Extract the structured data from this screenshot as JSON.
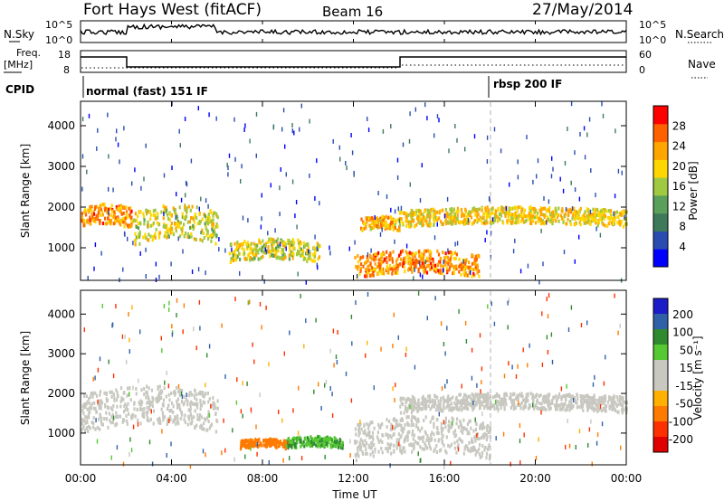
{
  "header": {
    "station": "Fort Hays West (fitACF)",
    "beam": "Beam 16",
    "date": "27/May/2014"
  },
  "small_panels": {
    "nsky_label": "N.Sky",
    "nsearch_label": "N.Search",
    "freq_label_1": "Freq.",
    "freq_label_2": "[MHz]",
    "nave_label": "Nave",
    "cpid_label": "CPID",
    "nsky_ticks": [
      "10^5",
      "10^0"
    ],
    "nsearch_ticks": [
      "10^5",
      "10^0"
    ],
    "freq_ticks": [
      "18",
      "8"
    ],
    "nave_ticks": [
      "60",
      "0"
    ]
  },
  "cpid": {
    "segments": [
      {
        "label": "normal (fast) 151 IF",
        "start_hour": 0,
        "end_hour": 18
      },
      {
        "label": "rbsp 200 IF",
        "start_hour": 18,
        "end_hour": 24
      }
    ]
  },
  "colors": {
    "power_scale": [
      "#0000ff",
      "#2a4cb0",
      "#3e7a5a",
      "#5aa05a",
      "#a0c840",
      "#ffd700",
      "#ffa500",
      "#ff6000",
      "#ff0000"
    ],
    "velocity_scale": [
      "#1c1cc8",
      "#3060a8",
      "#2f8a2f",
      "#55c832",
      "#c8c8c0",
      "#c8c8c0",
      "#ffb000",
      "#ff7a00",
      "#ff3000",
      "#e00000"
    ]
  },
  "chart_data": [
    {
      "type": "heatmap",
      "name": "power",
      "xlabel": "Time UT",
      "ylabel": "Slant Range [km]",
      "ylim": [
        200,
        4600
      ],
      "xlim": [
        0,
        24
      ],
      "yticks": [
        1000,
        2000,
        3000,
        4000
      ],
      "colorbar": {
        "label": "Power [dB]",
        "ticks": [
          4,
          8,
          12,
          16,
          20,
          24,
          28
        ],
        "range": [
          0,
          32
        ]
      },
      "features": [
        {
          "t0": 0,
          "t1": 2.3,
          "r0": 1450,
          "r1": 1950,
          "value": 24
        },
        {
          "t0": 2.3,
          "t1": 6,
          "r0": 1050,
          "r1": 1850,
          "value": 18
        },
        {
          "t0": 6.5,
          "t1": 10.5,
          "r0": 600,
          "r1": 1100,
          "value": 18
        },
        {
          "t0": 12.3,
          "t1": 14,
          "r0": 1400,
          "r1": 1700,
          "value": 22
        },
        {
          "t0": 14,
          "t1": 24,
          "r0": 1500,
          "r1": 1900,
          "value": 20
        },
        {
          "t0": 12,
          "t1": 17.5,
          "r0": 250,
          "r1": 800,
          "value": 24
        }
      ]
    },
    {
      "type": "heatmap",
      "name": "velocity",
      "xlabel": "Time UT",
      "ylabel": "Slant Range [km]",
      "ylim": [
        200,
        4600
      ],
      "xlim": [
        0,
        24
      ],
      "yticks": [
        1000,
        2000,
        3000,
        4000
      ],
      "colorbar": {
        "label": "Velocity [m s⁻¹]",
        "ticks": [
          200,
          100,
          50,
          15,
          -15,
          -50,
          -100,
          -200
        ]
      },
      "x_ticks": [
        "00:00",
        "04:00",
        "08:00",
        "12:00",
        "16:00",
        "20:00",
        "00:00"
      ],
      "features": [
        {
          "t0": 0,
          "t1": 6,
          "r0": 1000,
          "r1": 1950,
          "value": 0
        },
        {
          "t0": 7,
          "t1": 9,
          "r0": 600,
          "r1": 800,
          "value": -60
        },
        {
          "t0": 9,
          "t1": 11.5,
          "r0": 600,
          "r1": 850,
          "value": 30
        },
        {
          "t0": 14,
          "t1": 24,
          "r0": 1500,
          "r1": 1900,
          "value": 0
        },
        {
          "t0": 12,
          "t1": 18,
          "r0": 300,
          "r1": 1200,
          "value": 0
        }
      ]
    }
  ]
}
